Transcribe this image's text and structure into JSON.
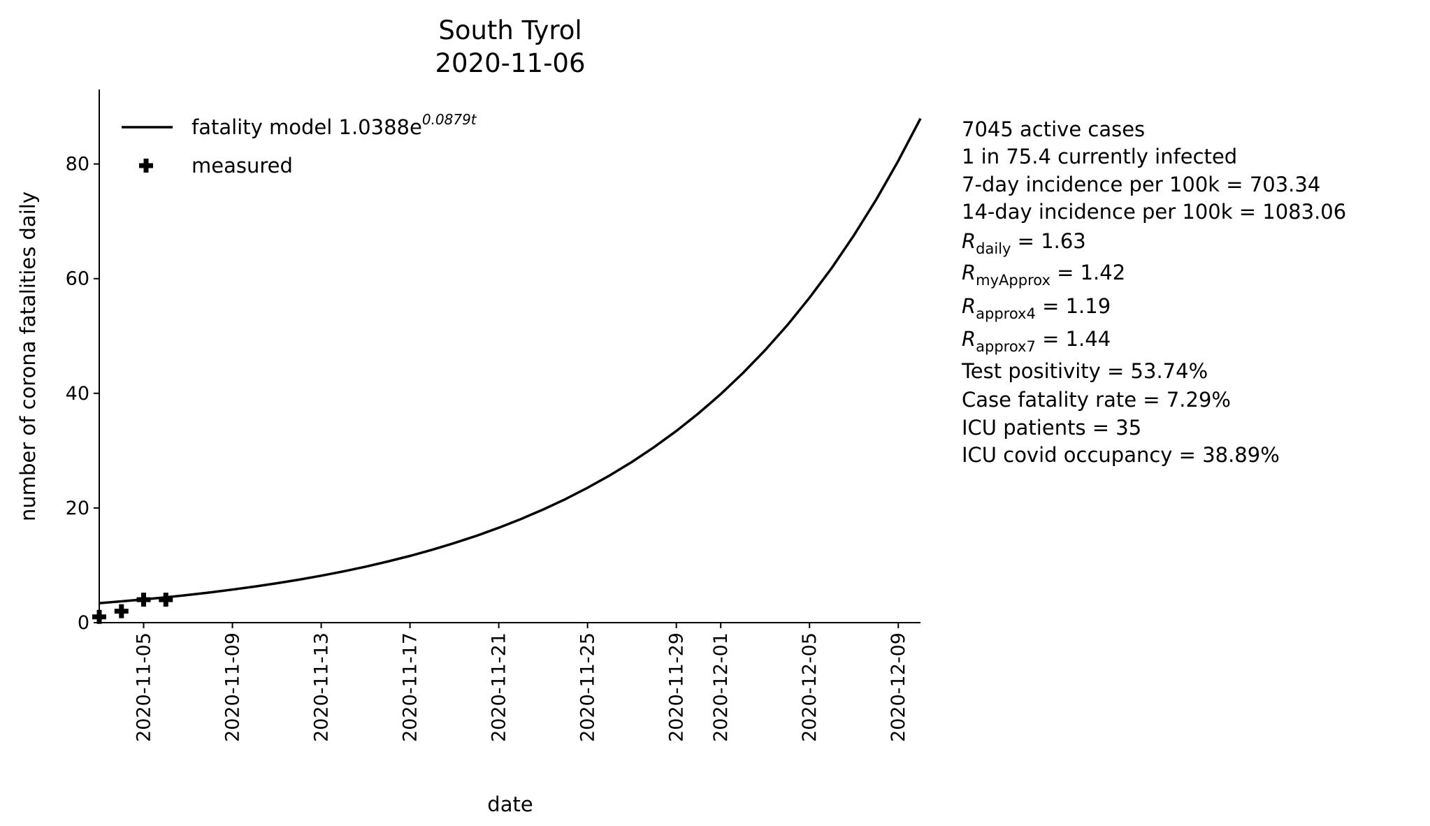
{
  "chart_data": {
    "type": "line",
    "title": "South Tyrol",
    "subtitle": "2020-11-06",
    "xlabel": "date",
    "ylabel": "number of corona fatalities daily",
    "xlim": [
      "2020-11-03",
      "2020-12-10"
    ],
    "ylim": [
      0,
      93
    ],
    "xticks": [
      "2020-11-05",
      "2020-11-09",
      "2020-11-13",
      "2020-11-17",
      "2020-11-21",
      "2020-11-25",
      "2020-11-29",
      "2020-12-01",
      "2020-12-05",
      "2020-12-09"
    ],
    "yticks": [
      0,
      20,
      40,
      60,
      80
    ],
    "legend": "upper left",
    "series": [
      {
        "name": "fatality model 1.0388e",
        "name_superscript": "0.0879t",
        "color": "#000000",
        "style": "line",
        "x": [
          "2020-11-03",
          "2020-11-04",
          "2020-11-05",
          "2020-11-06",
          "2020-11-07",
          "2020-11-08",
          "2020-11-09",
          "2020-11-10",
          "2020-11-11",
          "2020-11-12",
          "2020-11-13",
          "2020-11-14",
          "2020-11-15",
          "2020-11-16",
          "2020-11-17",
          "2020-11-18",
          "2020-11-19",
          "2020-11-20",
          "2020-11-21",
          "2020-11-22",
          "2020-11-23",
          "2020-11-24",
          "2020-11-25",
          "2020-11-26",
          "2020-11-27",
          "2020-11-28",
          "2020-11-29",
          "2020-11-30",
          "2020-12-01",
          "2020-12-02",
          "2020-12-03",
          "2020-12-04",
          "2020-12-05",
          "2020-12-06",
          "2020-12-07",
          "2020-12-08",
          "2020-12-09",
          "2020-12-10"
        ],
        "values": [
          3.4,
          3.72,
          4.06,
          4.43,
          4.83,
          5.28,
          5.76,
          6.29,
          6.87,
          7.5,
          8.19,
          8.94,
          9.76,
          10.66,
          11.64,
          12.71,
          13.88,
          15.15,
          16.55,
          18.07,
          19.73,
          21.54,
          23.52,
          25.68,
          28.04,
          30.62,
          33.43,
          36.5,
          39.86,
          43.52,
          47.52,
          51.89,
          56.66,
          61.86,
          67.55,
          73.76,
          80.54,
          87.93
        ]
      },
      {
        "name": "measured",
        "color": "#000000",
        "style": "marker",
        "x": [
          "2020-11-03",
          "2020-11-04",
          "2020-11-05",
          "2020-11-06"
        ],
        "values": [
          1,
          2,
          4,
          4
        ]
      }
    ],
    "annotations": [
      {
        "text": "7045 active cases"
      },
      {
        "text": "1 in 75.4 currently infected"
      },
      {
        "text": "7-day incidence per 100k = 703.34"
      },
      {
        "text": "14-day incidence per 100k = 1083.06"
      },
      {
        "symbol": "R",
        "subscript": "daily",
        "text": " = 1.63"
      },
      {
        "symbol": "R",
        "subscript": "myApprox",
        "text": " = 1.42"
      },
      {
        "symbol": "R",
        "subscript": "approx4",
        "text": " = 1.19"
      },
      {
        "symbol": "R",
        "subscript": "approx7",
        "text": " = 1.44"
      },
      {
        "text": "Test positivity = 53.74%"
      },
      {
        "text": "Case fatality rate = 7.29%"
      },
      {
        "text": "ICU patients = 35"
      },
      {
        "text": "ICU covid occupancy = 38.89%"
      }
    ]
  }
}
